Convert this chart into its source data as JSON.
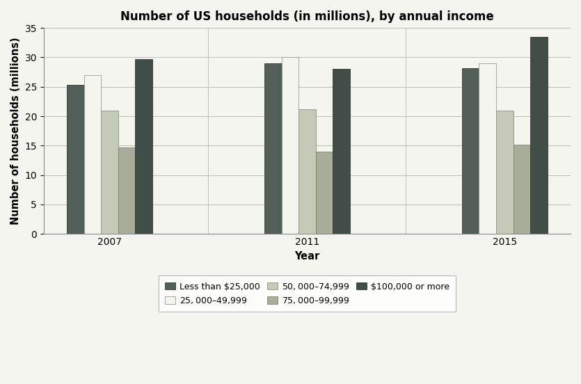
{
  "title": "Number of US households (in millions), by annual income",
  "xlabel": "Year",
  "ylabel": "Number of households (millions)",
  "years": [
    "2007",
    "2011",
    "2015"
  ],
  "categories": [
    "Less than $25,000",
    "$25,000–$49,999",
    "$50,000–$74,999",
    "$75,000–$99,999",
    "$100,000 or more"
  ],
  "values": {
    "Less than $25,000": [
      25.3,
      29.0,
      28.2
    ],
    "$25,000–$49,999": [
      27.0,
      30.0,
      29.0
    ],
    "$50,000–$74,999": [
      21.0,
      21.2,
      21.0
    ],
    "$75,000–$99,999": [
      14.7,
      14.0,
      15.2
    ],
    "$100,000 or more": [
      29.7,
      28.0,
      33.5
    ]
  },
  "colors": {
    "Less than $25,000": "#515f58",
    "$25,000–$49,999": "#f5f5f0",
    "$50,000–$74,999": "#c5c9b8",
    "$75,000–$99,999": "#a8ad9a",
    "$100,000 or more": "#404e47"
  },
  "edge_colors": {
    "Less than $25,000": "#303830",
    "$25,000–$49,999": "#999990",
    "$50,000–$74,999": "#909080",
    "$75,000–$99,999": "#808070",
    "$100,000 or more": "#303830"
  },
  "ylim": [
    0,
    35
  ],
  "yticks": [
    0,
    5,
    10,
    15,
    20,
    25,
    30,
    35
  ],
  "bar_width": 0.13,
  "background_color": "#f5f5f0",
  "plot_bg_color": "#f5f5f0",
  "grid_color": "#bbbbbb",
  "title_fontsize": 12,
  "axis_label_fontsize": 10.5,
  "tick_fontsize": 10,
  "legend_fontsize": 9
}
